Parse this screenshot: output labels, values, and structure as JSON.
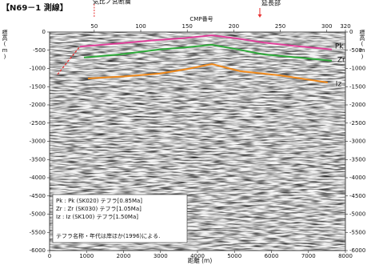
{
  "chart_data": {
    "type": "line",
    "title": "【N69－1 測線】",
    "xlabel": "距離 (m)",
    "ylabel": "標高(m)",
    "x2label": "CMP番号",
    "xlim": [
      0,
      8000
    ],
    "xticks": [
      0,
      1000,
      2000,
      3000,
      4000,
      5000,
      6000,
      7000,
      8000
    ],
    "x2lim": [
      2,
      320
    ],
    "x2ticks": [
      50,
      100,
      150,
      200,
      250,
      300,
      320
    ],
    "ylim": [
      -6000,
      0
    ],
    "yticks": [
      0,
      -500,
      -1000,
      -1500,
      -2000,
      -2500,
      -3000,
      -3500,
      -4000,
      -4500,
      -5000,
      -5500,
      -6000
    ],
    "grid": false,
    "series": [
      {
        "name": "Pk",
        "legend": "Pk : Pk (SK020) テフラ[0.85Ma]",
        "color": "#e0409a",
        "x": [
          820,
          1900,
          2770,
          3600,
          4390,
          5100,
          5800,
          6700,
          7630
        ],
        "values": [
          -400,
          -310,
          -230,
          -170,
          -90,
          -180,
          -290,
          -390,
          -480
        ]
      },
      {
        "name": "Zr",
        "legend": "Zr : Zr (SK030) テフラ[1.05Ma]",
        "color": "#2eaa3a",
        "x": [
          930,
          1900,
          2980,
          3700,
          4390,
          5100,
          5800,
          6700,
          7630
        ],
        "values": [
          -700,
          -615,
          -480,
          -420,
          -350,
          -480,
          -615,
          -700,
          -790
        ]
      },
      {
        "name": "Iz",
        "legend": "Iz : Iz (SK100) テフラ[1.50Ma]",
        "color": "#f08a1c",
        "x": [
          1040,
          2000,
          2980,
          3700,
          4390,
          5150,
          6230,
          7520
        ],
        "values": [
          -1275,
          -1220,
          -1140,
          -1020,
          -880,
          -1075,
          -1190,
          -1385
        ]
      }
    ],
    "fault_line": {
      "color": "#e83030",
      "x": [
        216,
        500,
        820
      ],
      "values": [
        -1165,
        -800,
        -400
      ]
    },
    "annotations": [
      {
        "text": "気比ノ宮断層",
        "x2": 50
      },
      {
        "text": "延長部",
        "x2": 228
      }
    ],
    "legend_note": "テフラ名称・年代は岸ほか(1996)による."
  }
}
